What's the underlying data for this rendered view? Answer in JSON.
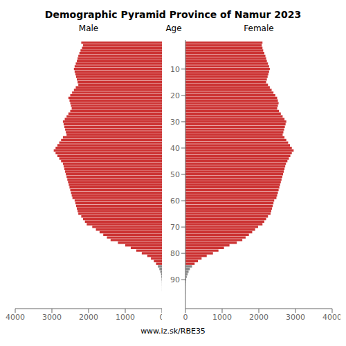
{
  "chart_data": {
    "type": "bar",
    "orientation": "horizontal",
    "title": "Demographic Pyramid Province of Namur 2023",
    "ylabel": "Age",
    "annotations": [
      "www.iz.sk/RBE35"
    ],
    "categories": [
      0,
      1,
      2,
      3,
      4,
      5,
      6,
      7,
      8,
      9,
      10,
      11,
      12,
      13,
      14,
      15,
      16,
      17,
      18,
      19,
      20,
      21,
      22,
      23,
      24,
      25,
      26,
      27,
      28,
      29,
      30,
      31,
      32,
      33,
      34,
      35,
      36,
      37,
      38,
      39,
      40,
      41,
      42,
      43,
      44,
      45,
      46,
      47,
      48,
      49,
      50,
      51,
      52,
      53,
      54,
      55,
      56,
      57,
      58,
      59,
      60,
      61,
      62,
      63,
      64,
      65,
      66,
      67,
      68,
      69,
      70,
      71,
      72,
      73,
      74,
      75,
      76,
      77,
      78,
      79,
      80,
      81,
      82,
      83,
      84,
      85,
      86,
      87,
      88,
      89,
      90,
      91,
      92,
      93,
      94,
      95,
      96,
      97,
      98,
      99
    ],
    "series": [
      {
        "name": "Male",
        "values": [
          2200,
          2150,
          2180,
          2220,
          2250,
          2280,
          2300,
          2320,
          2350,
          2380,
          2400,
          2380,
          2360,
          2340,
          2320,
          2300,
          2280,
          2350,
          2400,
          2450,
          2500,
          2550,
          2520,
          2500,
          2480,
          2460,
          2500,
          2550,
          2600,
          2650,
          2700,
          2680,
          2660,
          2640,
          2620,
          2600,
          2700,
          2750,
          2800,
          2850,
          2900,
          2950,
          2900,
          2850,
          2800,
          2750,
          2700,
          2680,
          2660,
          2640,
          2620,
          2600,
          2580,
          2560,
          2540,
          2520,
          2500,
          2480,
          2460,
          2440,
          2380,
          2360,
          2340,
          2320,
          2300,
          2280,
          2200,
          2150,
          2100,
          2050,
          1900,
          1800,
          1700,
          1600,
          1500,
          1400,
          1200,
          1000,
          850,
          700,
          550,
          400,
          300,
          220,
          160,
          110,
          70,
          45,
          25,
          15,
          8,
          3,
          2,
          1,
          1,
          0,
          0,
          0,
          0,
          0
        ]
      },
      {
        "name": "Female",
        "values": [
          2100,
          2080,
          2100,
          2120,
          2150,
          2180,
          2200,
          2220,
          2250,
          2280,
          2300,
          2280,
          2260,
          2240,
          2220,
          2200,
          2250,
          2300,
          2350,
          2400,
          2450,
          2500,
          2520,
          2540,
          2520,
          2500,
          2550,
          2600,
          2650,
          2700,
          2750,
          2730,
          2710,
          2690,
          2670,
          2650,
          2700,
          2750,
          2800,
          2850,
          2900,
          2950,
          2900,
          2860,
          2820,
          2780,
          2740,
          2720,
          2700,
          2680,
          2660,
          2640,
          2620,
          2600,
          2580,
          2560,
          2540,
          2520,
          2500,
          2480,
          2420,
          2400,
          2380,
          2360,
          2340,
          2320,
          2250,
          2200,
          2150,
          2100,
          1980,
          1900,
          1820,
          1730,
          1640,
          1550,
          1400,
          1200,
          1050,
          900,
          750,
          580,
          440,
          340,
          250,
          180,
          120,
          85,
          60,
          35,
          20,
          10,
          5,
          3,
          2,
          1,
          0,
          0,
          0,
          0
        ]
      }
    ],
    "colors": [
      "#cc3333",
      "#cc3333",
      "#cc3333",
      "#cc3333",
      "#cc3333",
      "#cc3333",
      "#cc3333",
      "#cc3333",
      "#cc3333",
      "#cc3333",
      "#cc3333",
      "#cc3333",
      "#cc3333",
      "#cc3333",
      "#cc3333",
      "#cc3333",
      "#cc3333",
      "#cc3333",
      "#cc3333",
      "#cc3333",
      "#cc3333",
      "#cc3333",
      "#cc3333",
      "#cc3333",
      "#cc3333",
      "#cc3333",
      "#cc3333",
      "#cc3333",
      "#cc3333",
      "#cc3333",
      "#cc3333",
      "#cc3333",
      "#cc3333",
      "#cc3333",
      "#cc3333",
      "#cc3333",
      "#cc3333",
      "#cc3333",
      "#cc3333",
      "#cc3333",
      "#cc3333",
      "#cc3333",
      "#cc3333",
      "#cc3333",
      "#cc3333",
      "#cc3333",
      "#cc3333",
      "#cc3333",
      "#cc3333",
      "#cc3333",
      "#cc3333",
      "#cc3333",
      "#cc3333",
      "#cc3333",
      "#cc3333",
      "#cc3333",
      "#cc3333",
      "#cc3333",
      "#cc3333",
      "#cc3333",
      "#cc3333",
      "#cc3333",
      "#cc3333",
      "#cc3333",
      "#cc3333",
      "#cc3333",
      "#cc3333",
      "#cc3333",
      "#cc3333",
      "#cc3333",
      "#cc3333",
      "#cc3333",
      "#cc3333",
      "#cc3333",
      "#cc3333",
      "#cc3333",
      "#cc3333",
      "#cc3333",
      "#cc3333",
      "#cc3333",
      "#cc3333",
      "#cc3333",
      "#cc3333",
      "#cc3333",
      "#cc3333",
      "#888888",
      "#888888",
      "#888888",
      "#888888",
      "#888888",
      "#888888",
      "#888888",
      "#888888",
      "#888888",
      "#888888",
      "#111111",
      "#111111",
      "#111111",
      "#111111",
      "#111111"
    ],
    "xlim": [
      0,
      4000
    ],
    "xticks": [
      0,
      1000,
      2000,
      3000,
      4000
    ],
    "ylim": [
      -1,
      101
    ],
    "yticks": [
      10,
      20,
      30,
      40,
      50,
      60,
      70,
      80,
      90
    ]
  }
}
